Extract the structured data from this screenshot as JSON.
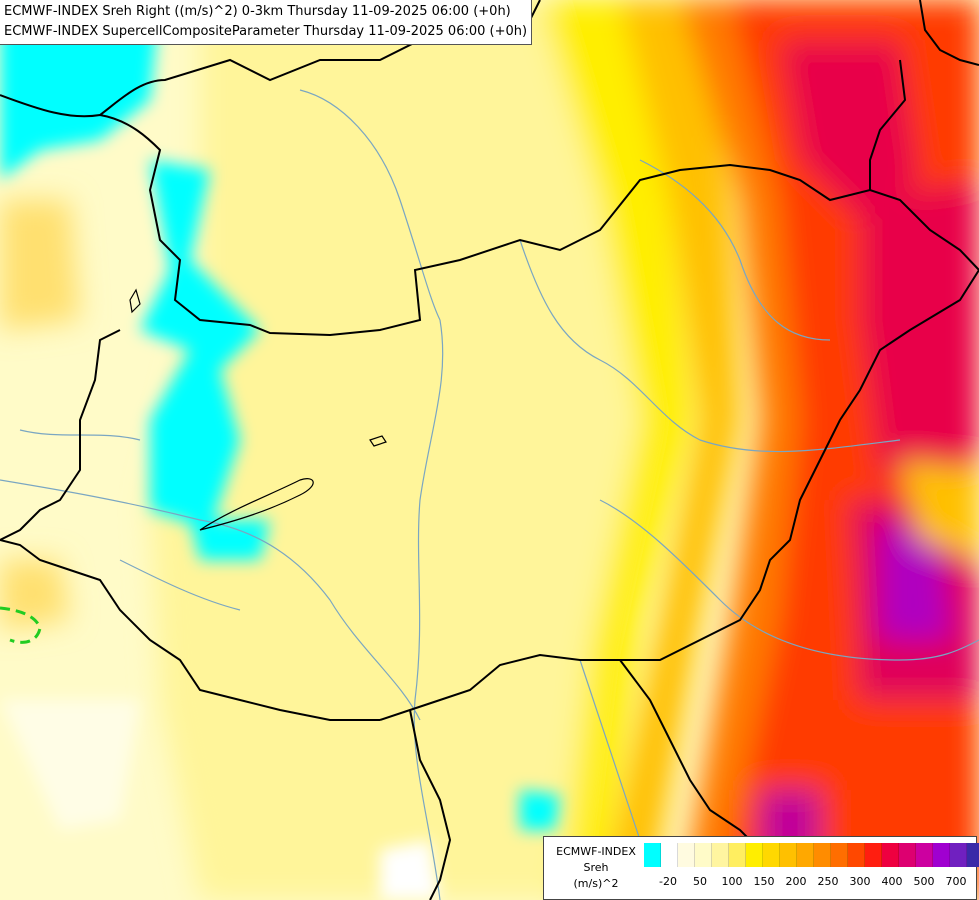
{
  "title_lines": [
    "ECMWF-INDEX Sreh Right ((m/s)^2) 0-3km Thursday 11-09-2025 06:00 (+0h)",
    "ECMWF-INDEX SupercellCompositeParameter Thursday 11-09-2025 06:00 (+0h)"
  ],
  "legend": {
    "source": "ECMWF-INDEX",
    "parameter": "Sreh",
    "unit": "(m/s)^2",
    "colors": [
      "#00ffff",
      "#ffffff",
      "#fffbe0",
      "#fffbc8",
      "#fff5a0",
      "#ffee60",
      "#ffee00",
      "#ffd800",
      "#ffc000",
      "#ffa800",
      "#ff8c00",
      "#ff6e00",
      "#ff4800",
      "#ff1e10",
      "#ee0040",
      "#dd0070",
      "#cc00a0",
      "#a000d0",
      "#7020c0",
      "#3a2aa8",
      "#0a0a90"
    ],
    "ticks": [
      "-20",
      "50",
      "100",
      "150",
      "200",
      "250",
      "300",
      "400",
      "500",
      "700"
    ]
  },
  "colors": {
    "background": "#fffbc8",
    "border": "#000000",
    "river": "#7aa6c2",
    "cyan": "#00ffff",
    "scp_contour": "#22cc22"
  }
}
